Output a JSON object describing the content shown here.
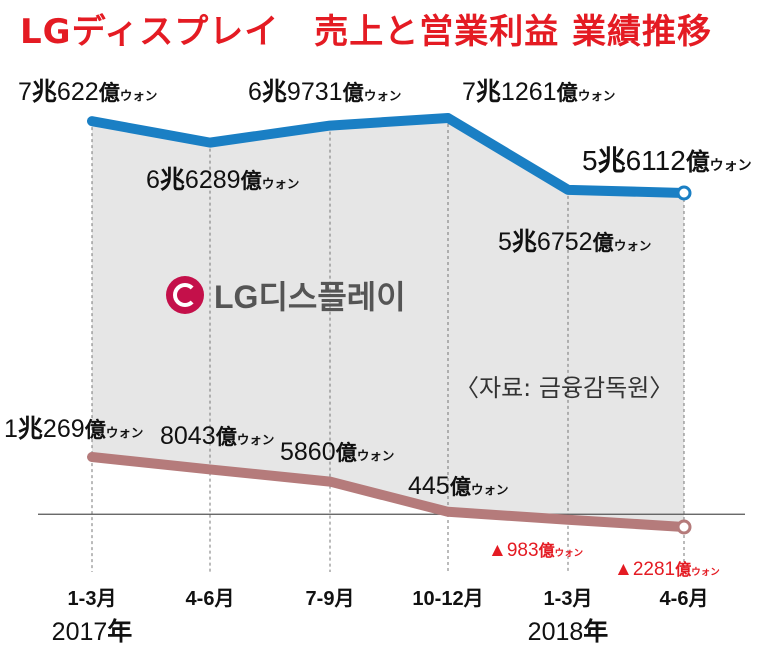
{
  "title": "LGディスプレイ　売上と営業利益 業績推移",
  "logo": {
    "name": "logo-lg-display",
    "text": "LG디스플레이",
    "color": "#c4104a"
  },
  "source": "〈자료: 금융감독원〉",
  "colors": {
    "revenue": "#1a7fc4",
    "profit": "#b57b7b",
    "area": "#e6e6e6",
    "negative": "#e41b23"
  },
  "chart_data": {
    "type": "line",
    "categories": [
      "1-3月",
      "4-6月",
      "7-9月",
      "10-12月",
      "1-3月",
      "4-6月"
    ],
    "year_labels": [
      {
        "index": 0,
        "year": "2017",
        "suffix": "年"
      },
      {
        "index": 4,
        "year": "2018",
        "suffix": "年"
      }
    ],
    "series": [
      {
        "key": "revenue",
        "values": [
          70622,
          66289,
          69731,
          71261,
          56752,
          56112
        ],
        "labels": [
          {
            "lead": "7",
            "lead_unit": "兆",
            "num": "622",
            "unit": "億",
            "won": "ウォン"
          },
          {
            "lead": "6",
            "lead_unit": "兆",
            "num": "6289",
            "unit": "億",
            "won": "ウォン"
          },
          {
            "lead": "6",
            "lead_unit": "兆",
            "num": "9731",
            "unit": "億",
            "won": "ウォン"
          },
          {
            "lead": "7",
            "lead_unit": "兆",
            "num": "1261",
            "unit": "億",
            "won": "ウォン"
          },
          {
            "lead": "5",
            "lead_unit": "兆",
            "num": "6752",
            "unit": "億",
            "won": "ウォン"
          },
          {
            "lead": "5",
            "lead_unit": "兆",
            "num": "6112",
            "unit": "億",
            "won": "ウォン"
          }
        ]
      },
      {
        "key": "profit",
        "values": [
          10269,
          8043,
          5860,
          445,
          -983,
          -2281
        ],
        "labels": [
          {
            "lead": "1",
            "lead_unit": "兆",
            "num": "269",
            "unit": "億",
            "won": "ウォン"
          },
          {
            "lead": "",
            "lead_unit": "",
            "num": "8043",
            "unit": "億",
            "won": "ウォン"
          },
          {
            "lead": "",
            "lead_unit": "",
            "num": "5860",
            "unit": "億",
            "won": "ウォン"
          },
          {
            "lead": "",
            "lead_unit": "",
            "num": "445",
            "unit": "億",
            "won": "ウォン"
          },
          {
            "lead": "▲",
            "lead_unit": "",
            "num": "983",
            "unit": "億",
            "won": "ウォン"
          },
          {
            "lead": "▲",
            "lead_unit": "",
            "num": "2281",
            "unit": "億",
            "won": "ウォン"
          }
        ]
      }
    ],
    "unit": "億ウォン",
    "grid": true
  }
}
